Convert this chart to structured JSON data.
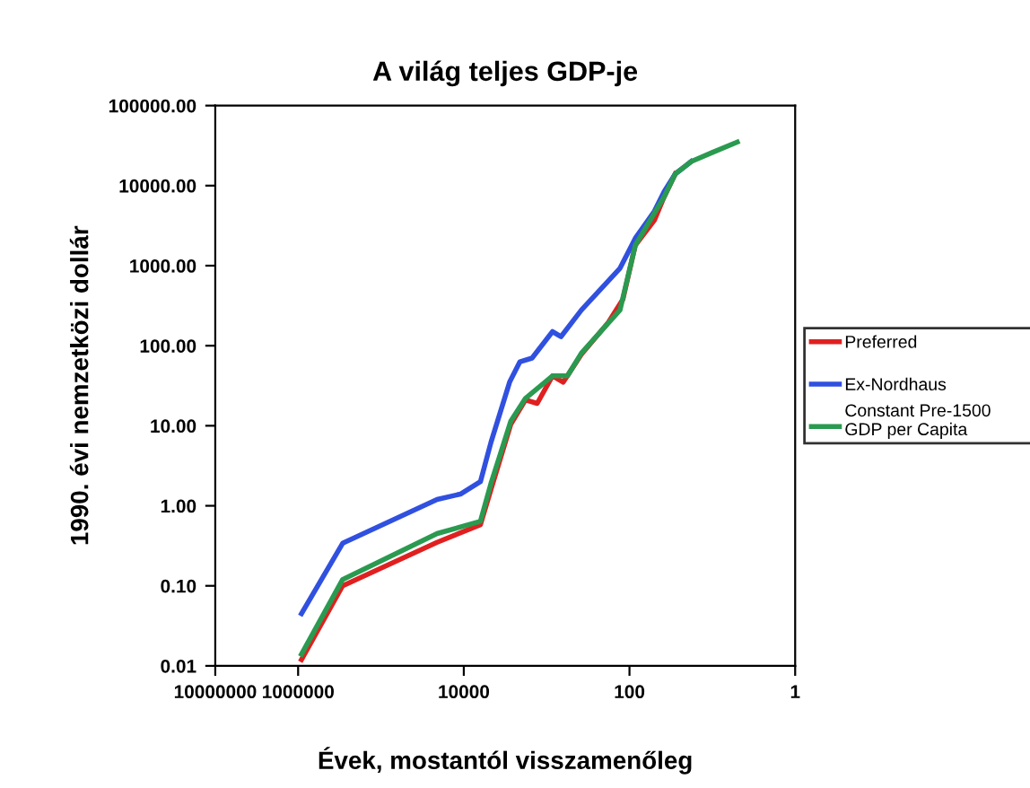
{
  "chart_data": {
    "type": "line",
    "title": "A világ teljes GDP-je",
    "xlabel": "Évek, mostantól visszamenőleg",
    "ylabel": "1990. évi nemzetközi dollár",
    "log": "xy",
    "grid": false,
    "legend": "right",
    "marker": "none",
    "line_style": "solid",
    "xlim": [
      10000000,
      1
    ],
    "xticks": [
      10000000,
      1000000,
      10000,
      100,
      1
    ],
    "ylim": [
      0.01,
      100000
    ],
    "yticks": [
      {
        "value": 0.01,
        "label": "0.01"
      },
      {
        "value": 0.1,
        "label": "0.10"
      },
      {
        "value": 1,
        "label": "1.00"
      },
      {
        "value": 10,
        "label": "10.00"
      },
      {
        "value": 100,
        "label": "100.00"
      },
      {
        "value": 1000,
        "label": "1000.00"
      },
      {
        "value": 10000,
        "label": "10000.00"
      },
      {
        "value": 100000,
        "label": "100000.00"
      }
    ],
    "series": [
      {
        "name": "Preferred",
        "color": "#e02020",
        "x": [
          910000,
          290000,
          21000,
          6300,
          4700,
          2700,
          1800,
          1300,
          850,
          630,
          380,
          180,
          120,
          85,
          50,
          38,
          28
        ],
        "values": [
          0.012,
          0.1,
          0.35,
          0.58,
          1.6,
          10.5,
          21,
          19,
          42,
          35,
          78,
          195,
          380,
          1800,
          3700,
          7300,
          14000
        ]
      },
      {
        "name": "Ex-Nordhaus",
        "color": "#3050e0",
        "x": [
          910000,
          290000,
          21000,
          11000,
          6300,
          4700,
          2800,
          2100,
          1500,
          850,
          670,
          380,
          130,
          85,
          50,
          38,
          28,
          18
        ],
        "values": [
          0.045,
          0.34,
          1.2,
          1.4,
          2.0,
          6.2,
          35,
          63,
          70,
          150,
          130,
          280,
          930,
          2200,
          4800,
          8500,
          14000,
          20000
        ]
      },
      {
        "name": "Constant Pre-1500 GDP per Capita",
        "color": "#2a9a50",
        "x": [
          910000,
          290000,
          21000,
          6300,
          4700,
          2700,
          1800,
          850,
          560,
          380,
          130,
          85,
          38,
          28,
          18,
          10,
          5
        ],
        "values": [
          0.014,
          0.12,
          0.45,
          0.64,
          1.9,
          11.5,
          22,
          42,
          42,
          81,
          280,
          1800,
          7300,
          14000,
          20000,
          26000,
          35000
        ]
      }
    ]
  }
}
